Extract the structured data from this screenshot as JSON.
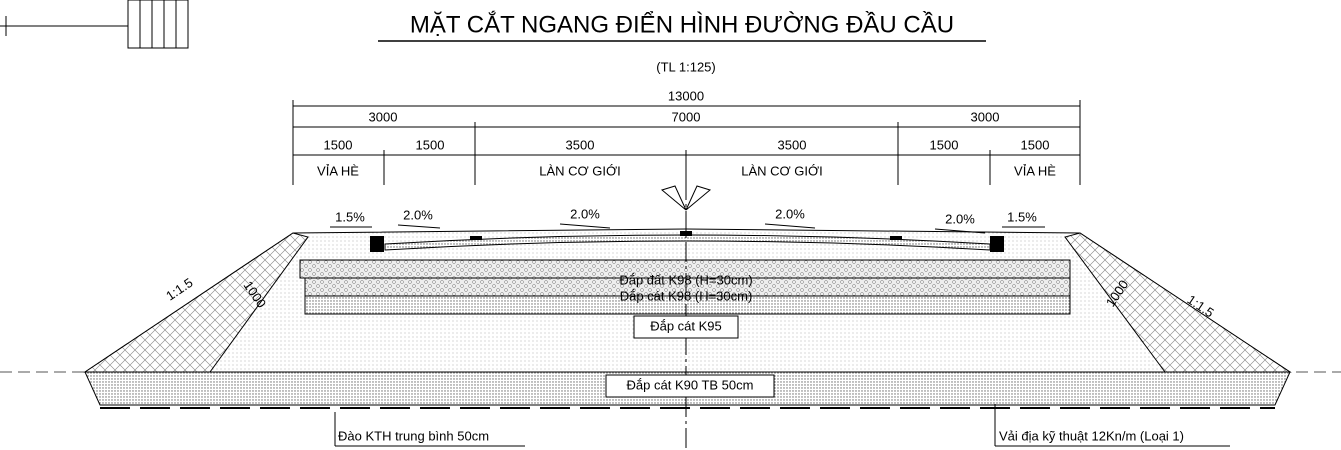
{
  "title": "MẶT CẮT NGANG ĐIỂN HÌNH ĐƯỜNG ĐẦU CẦU",
  "scale": "(TL 1:125)",
  "dimensions": {
    "total": 13000,
    "level2": [
      3000,
      7000,
      3000
    ],
    "level3": [
      1500,
      1500,
      3500,
      3500,
      1500,
      1500
    ]
  },
  "zone_labels": [
    "VỈA HÈ",
    "LÀN CƠ GIỚI",
    "LÀN CƠ GIỚI",
    "VỈA HÈ"
  ],
  "crossfalls": [
    "1.5%",
    "2.0%",
    "2.0%",
    "2.0%",
    "2.0%",
    "1.5%"
  ],
  "side_slopes": [
    "1:1.5",
    "1000",
    "1000",
    "1:1.5"
  ],
  "layers": [
    "Đắp đất K98 (H=30cm)",
    "Đắp cát K98 (H=30cm)",
    "Đắp cát K95",
    "Đắp cát K90 TB 50cm"
  ],
  "notes": [
    "Đào KTH trung bình 50cm",
    "Vải địa kỹ thuật 12Kn/m (Loại 1)"
  ]
}
